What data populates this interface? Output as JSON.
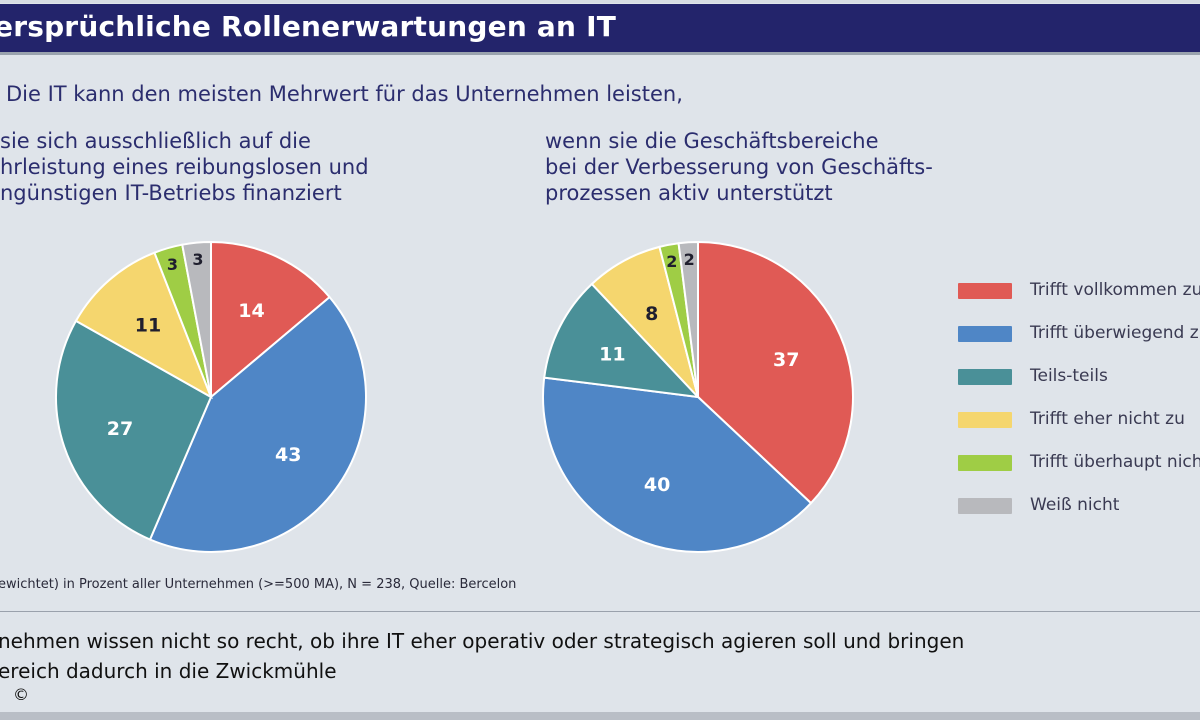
{
  "header": {
    "title": "ersprüchliche Rollenerwartungen an IT"
  },
  "question": "Die IT kann den meisten Mehrwert für das Unternehmen leisten,",
  "subtitles": {
    "left": [
      "sie sich ausschließlich auf die",
      "hrleistung eines reibungslosen und",
      "ngünstigen IT-Betriebs finanziert"
    ],
    "right": [
      "wenn sie die Geschäftsbereiche",
      "bei der Verbesserung von Geschäfts-",
      "prozessen aktiv unterstützt"
    ]
  },
  "legend": [
    {
      "label": "Trifft vollkommen zu",
      "color": "#e05a55"
    },
    {
      "label": "Trifft überwiegend zu",
      "color": "#4f86c6"
    },
    {
      "label": "Teils-teils",
      "color": "#4a9098"
    },
    {
      "label": "Trifft eher nicht zu",
      "color": "#f5d66e"
    },
    {
      "label": "Trifft überhaupt nicht zu",
      "color": "#9fcd45"
    },
    {
      "label": "Weiß nicht",
      "color": "#b8b9bd"
    }
  ],
  "chart_data": [
    {
      "type": "pie",
      "categories": [
        "Trifft vollkommen zu",
        "Trifft überwiegend zu",
        "Teils-teils",
        "Trifft eher nicht zu",
        "Trifft überhaupt nicht zu",
        "Weiß nicht"
      ],
      "values": [
        14,
        43,
        27,
        11,
        3,
        3
      ]
    },
    {
      "type": "pie",
      "categories": [
        "Trifft vollkommen zu",
        "Trifft überwiegend zu",
        "Teils-teils",
        "Trifft eher nicht zu",
        "Trifft überhaupt nicht zu",
        "Weiß nicht"
      ],
      "values": [
        37,
        40,
        11,
        8,
        2,
        2
      ]
    }
  ],
  "source": "ewichtet) in Prozent aller Unternehmen (>=500 MA), N = 238, Quelle: Bercelon",
  "caption": [
    "nehmen wissen nicht so recht, ob ihre IT eher operativ oder strategisch agieren soll und bringen",
    "ereich dadurch in die Zwickmühle"
  ],
  "copyright": "©"
}
